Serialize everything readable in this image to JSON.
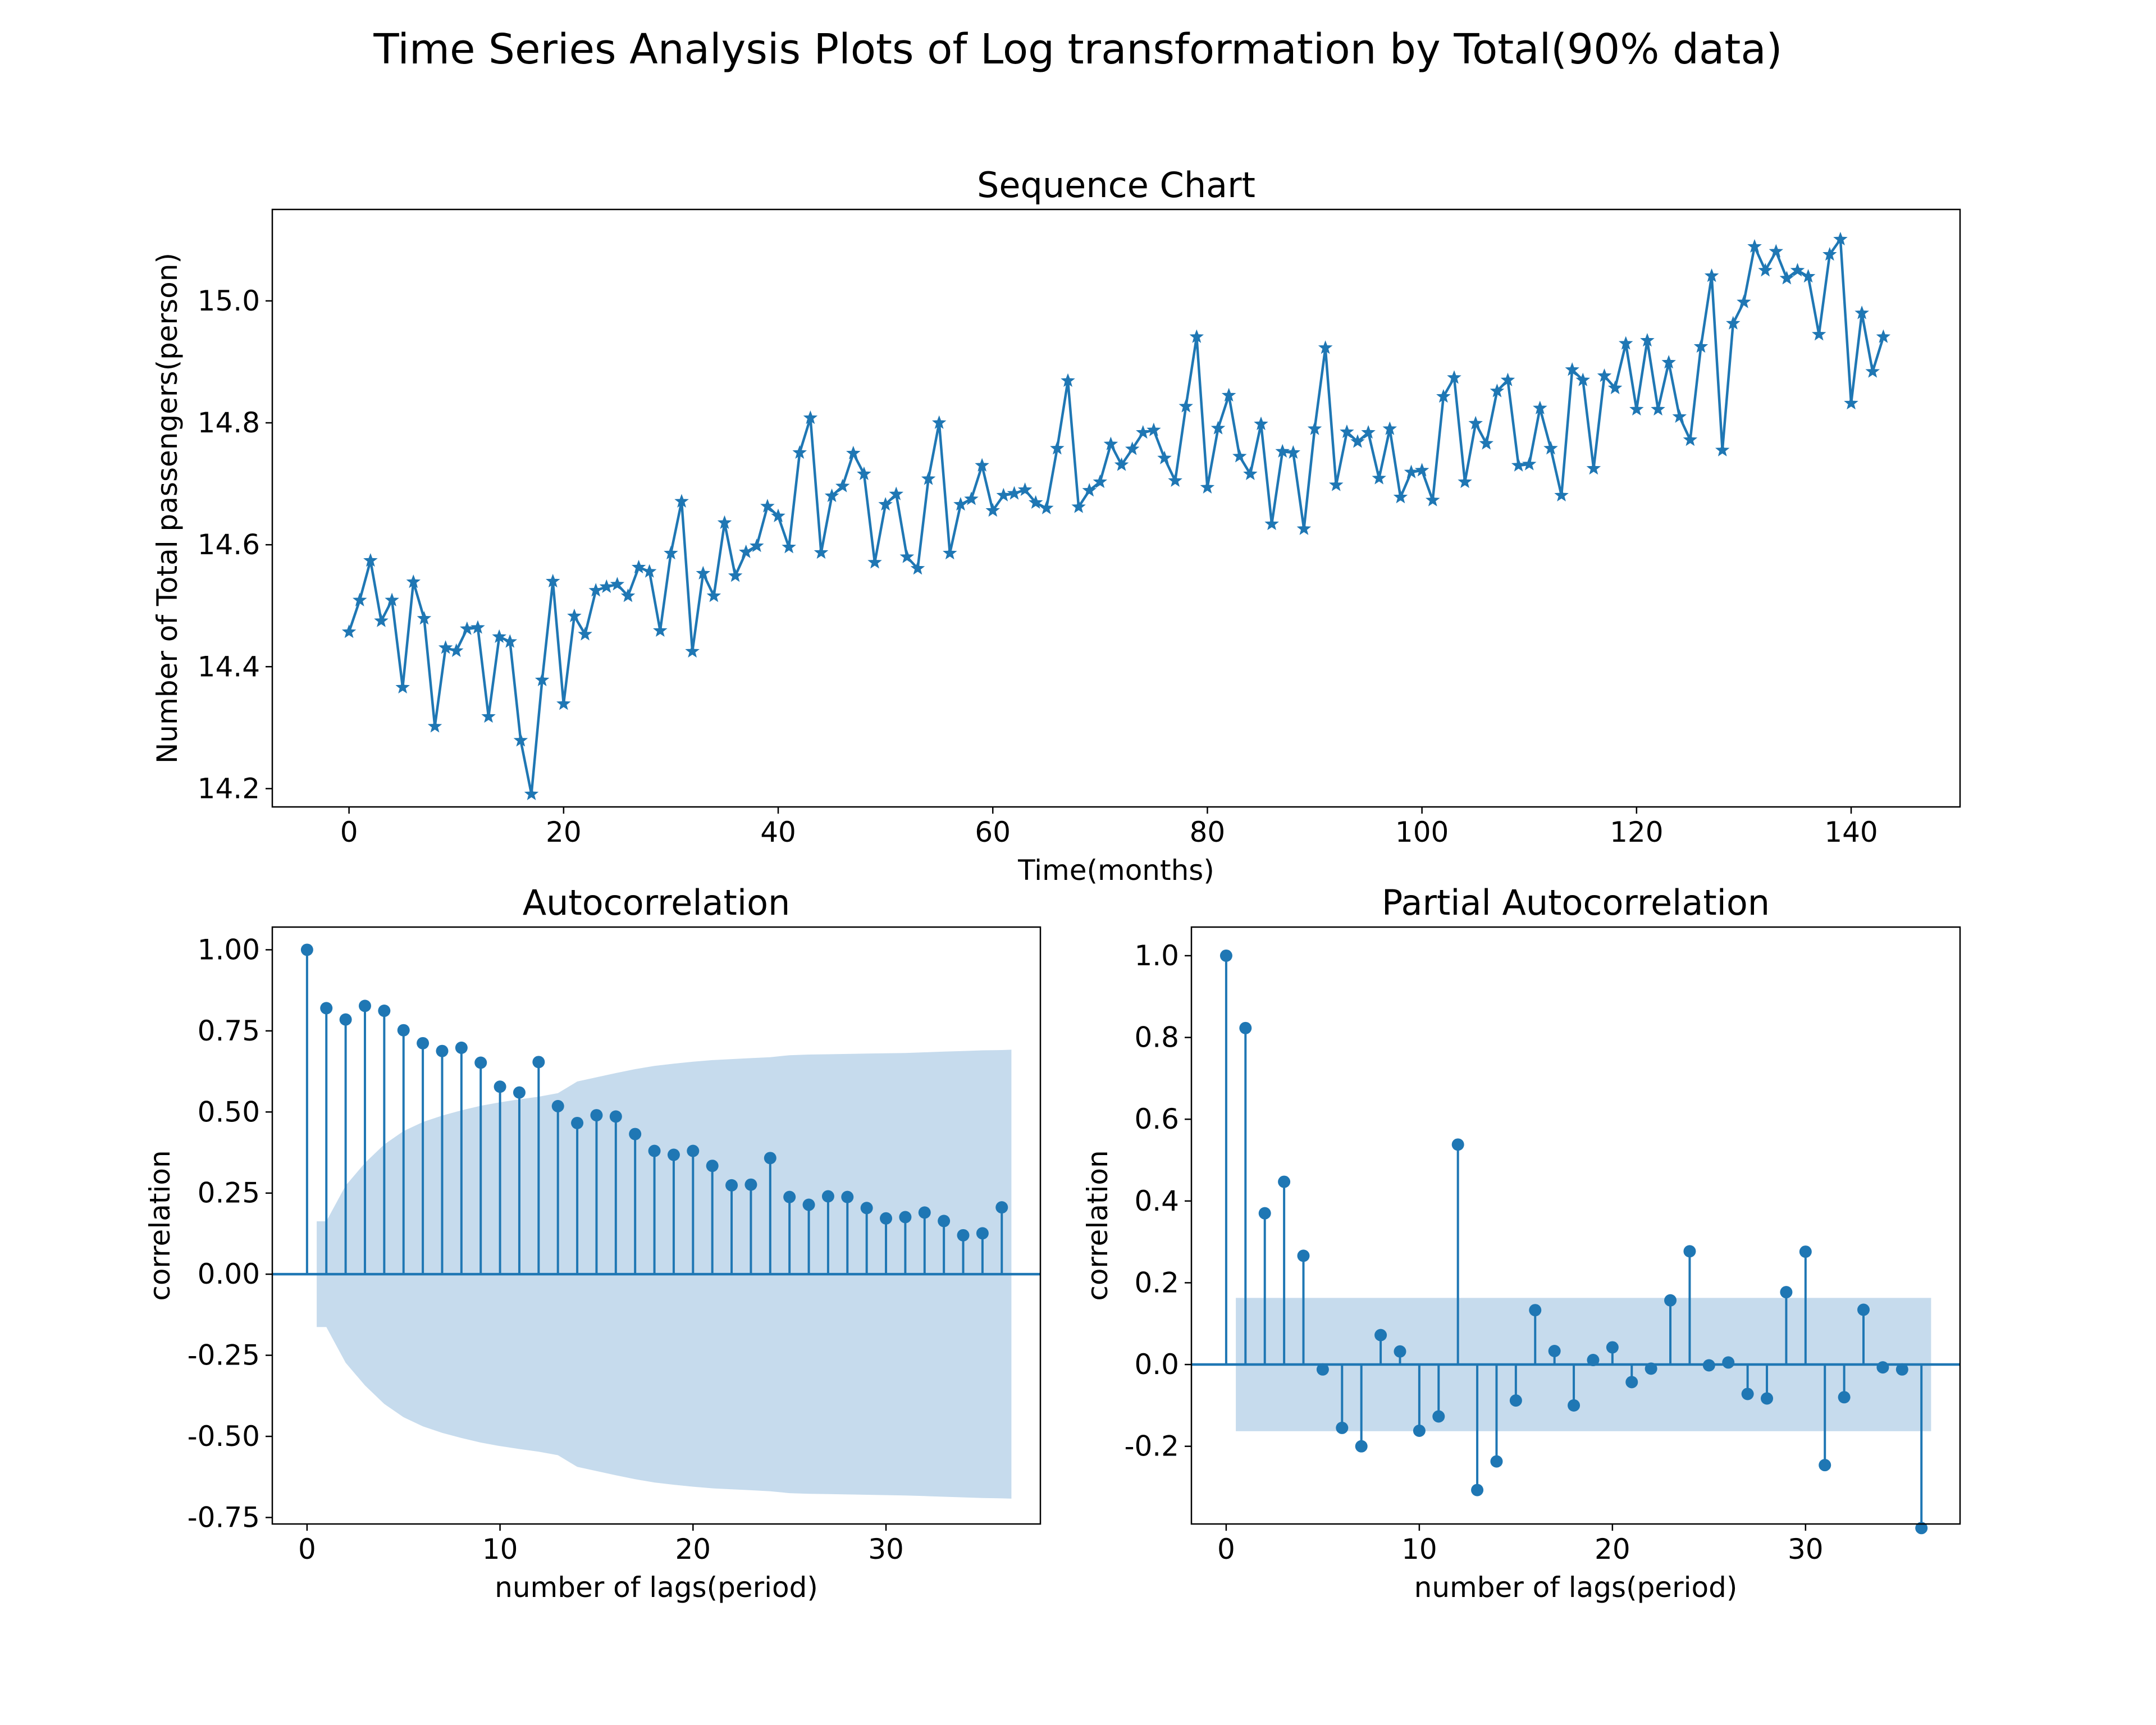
{
  "figure": {
    "title": "Time Series Analysis Plots of Log transformation by Total(90% data)",
    "line_color": "#1f77b4",
    "band_color": "#c6dbed"
  },
  "chart_data": [
    {
      "type": "line",
      "title": "Sequence Chart",
      "xlabel": "Time(months)",
      "ylabel": "Number of Total passengers(person)",
      "xlim": [
        -7.15,
        150.15
      ],
      "ylim": [
        14.17,
        15.15
      ],
      "xticks": [
        0,
        20,
        40,
        60,
        80,
        100,
        120,
        140
      ],
      "xtick_labels": [
        "0",
        "20",
        "40",
        "60",
        "80",
        "100",
        "120",
        "140"
      ],
      "yticks": [
        14.2,
        14.4,
        14.6,
        14.8,
        15.0
      ],
      "ytick_labels": [
        "14.2",
        "14.4",
        "14.6",
        "14.8",
        "15.0"
      ],
      "marker": "star",
      "grid": false,
      "x": [
        0,
        1,
        2,
        3,
        4,
        5,
        6,
        7,
        8,
        9,
        10,
        11,
        12,
        13,
        14,
        15,
        16,
        17,
        18,
        19,
        20,
        21,
        22,
        23,
        24,
        25,
        26,
        27,
        28,
        29,
        30,
        31,
        32,
        33,
        34,
        35,
        36,
        37,
        38,
        39,
        40,
        41,
        42,
        43,
        44,
        45,
        46,
        47,
        48,
        49,
        50,
        51,
        52,
        53,
        54,
        55,
        56,
        57,
        58,
        59,
        60,
        61,
        62,
        63,
        64,
        65,
        66,
        67,
        68,
        69,
        70,
        71,
        72,
        73,
        74,
        75,
        76,
        77,
        78,
        79,
        80,
        81,
        82,
        83,
        84,
        85,
        86,
        87,
        88,
        89,
        90,
        91,
        92,
        93,
        94,
        95,
        96,
        97,
        98,
        99,
        100,
        101,
        102,
        103,
        104,
        105,
        106,
        107,
        108,
        109,
        110,
        111,
        112,
        113,
        114,
        115,
        116,
        117,
        118,
        119,
        120,
        121,
        122,
        123,
        124,
        125,
        126,
        127,
        128,
        129,
        130,
        131,
        132,
        133,
        134,
        135,
        136,
        137,
        138,
        139,
        140,
        141,
        142,
        143
      ],
      "series": [
        {
          "values": [
            14.457,
            14.509,
            14.574,
            14.475,
            14.509,
            14.366,
            14.539,
            14.479,
            14.302,
            14.431,
            14.426,
            14.462,
            14.464,
            14.318,
            14.449,
            14.441,
            14.279,
            14.191,
            14.378,
            14.54,
            14.339,
            14.483,
            14.453,
            14.525,
            14.531,
            14.535,
            14.516,
            14.563,
            14.556,
            14.459,
            14.586,
            14.671,
            14.425,
            14.553,
            14.516,
            14.636,
            14.549,
            14.588,
            14.598,
            14.663,
            14.647,
            14.596,
            14.751,
            14.808,
            14.587,
            14.68,
            14.696,
            14.75,
            14.716,
            14.571,
            14.666,
            14.683,
            14.58,
            14.561,
            14.708,
            14.8,
            14.586,
            14.666,
            14.675,
            14.73,
            14.656,
            14.681,
            14.684,
            14.69,
            14.669,
            14.66,
            14.758,
            14.869,
            14.662,
            14.689,
            14.703,
            14.765,
            14.731,
            14.757,
            14.784,
            14.788,
            14.742,
            14.705,
            14.827,
            14.941,
            14.694,
            14.791,
            14.845,
            14.745,
            14.716,
            14.798,
            14.634,
            14.753,
            14.751,
            14.626,
            14.79,
            14.923,
            14.698,
            14.785,
            14.769,
            14.784,
            14.709,
            14.79,
            14.678,
            14.719,
            14.722,
            14.673,
            14.843,
            14.874,
            14.703,
            14.799,
            14.766,
            14.852,
            14.87,
            14.73,
            14.732,
            14.824,
            14.758,
            14.681,
            14.887,
            14.87,
            14.725,
            14.877,
            14.857,
            14.93,
            14.822,
            14.935,
            14.822,
            14.899,
            14.81,
            14.772,
            14.925,
            15.041,
            14.755,
            14.963,
            14.998,
            15.089,
            15.05,
            15.081,
            15.037,
            15.05,
            15.04,
            14.945,
            15.076,
            15.101,
            14.832,
            14.98,
            14.884,
            14.941
          ]
        }
      ]
    },
    {
      "type": "stem",
      "title": "Autocorrelation",
      "xlabel": "number of lags(period)",
      "ylabel": "correlation",
      "xlim": [
        -1.8,
        38.0
      ],
      "ylim": [
        -0.77,
        1.07
      ],
      "xticks": [
        0,
        10,
        20,
        30
      ],
      "xtick_labels": [
        "0",
        "10",
        "20",
        "30"
      ],
      "yticks": [
        -0.75,
        -0.5,
        -0.25,
        0.0,
        0.25,
        0.5,
        0.75,
        1.0
      ],
      "ytick_labels": [
        "-0.75",
        "-0.50",
        "-0.25",
        "0.00",
        "0.25",
        "0.50",
        "0.75",
        "1.00"
      ],
      "lags": [
        0,
        1,
        2,
        3,
        4,
        5,
        6,
        7,
        8,
        9,
        10,
        11,
        12,
        13,
        14,
        15,
        16,
        17,
        18,
        19,
        20,
        21,
        22,
        23,
        24,
        25,
        26,
        27,
        28,
        29,
        30,
        31,
        32,
        33,
        34,
        35,
        36
      ],
      "values": [
        1.0,
        0.82,
        0.785,
        0.827,
        0.812,
        0.752,
        0.712,
        0.688,
        0.698,
        0.652,
        0.578,
        0.56,
        0.654,
        0.518,
        0.466,
        0.49,
        0.486,
        0.432,
        0.38,
        0.368,
        0.38,
        0.334,
        0.274,
        0.276,
        0.358,
        0.238,
        0.214,
        0.24,
        0.238,
        0.204,
        0.172,
        0.176,
        0.19,
        0.164,
        0.12,
        0.126,
        0.206
      ],
      "confidence_band": {
        "lags": [
          0.5,
          1,
          2,
          3,
          4,
          5,
          6,
          7,
          8,
          9,
          10,
          11,
          12,
          13,
          14,
          15,
          16,
          17,
          18,
          19,
          20,
          21,
          22,
          23,
          24,
          25,
          26,
          27,
          28,
          29,
          30,
          31,
          32,
          33,
          34,
          35,
          36,
          36.5
        ],
        "upper": [
          0.163,
          0.163,
          0.273,
          0.343,
          0.4,
          0.441,
          0.469,
          0.489,
          0.505,
          0.519,
          0.53,
          0.539,
          0.547,
          0.558,
          0.594,
          0.607,
          0.62,
          0.632,
          0.642,
          0.649,
          0.655,
          0.66,
          0.663,
          0.666,
          0.669,
          0.675,
          0.677,
          0.678,
          0.679,
          0.68,
          0.681,
          0.682,
          0.684,
          0.686,
          0.688,
          0.69,
          0.691,
          0.692
        ]
      }
    },
    {
      "type": "stem",
      "title": "Partial Autocorrelation",
      "xlabel": "number of lags(period)",
      "ylabel": "correlation",
      "xlim": [
        -1.8,
        38.0
      ],
      "ylim": [
        -0.39,
        1.07
      ],
      "xticks": [
        0,
        10,
        20,
        30
      ],
      "xtick_labels": [
        "0",
        "10",
        "20",
        "30"
      ],
      "yticks": [
        -0.2,
        0.0,
        0.2,
        0.4,
        0.6,
        0.8,
        1.0
      ],
      "ytick_labels": [
        "-0.2",
        "0.0",
        "0.2",
        "0.4",
        "0.6",
        "0.8",
        "1.0"
      ],
      "lags": [
        0,
        1,
        2,
        3,
        4,
        5,
        6,
        7,
        8,
        9,
        10,
        11,
        12,
        13,
        14,
        15,
        16,
        17,
        18,
        19,
        20,
        21,
        22,
        23,
        24,
        25,
        26,
        27,
        28,
        29,
        30,
        31,
        32,
        33,
        34,
        35,
        36
      ],
      "values": [
        1.0,
        0.823,
        0.37,
        0.447,
        0.266,
        -0.012,
        -0.155,
        -0.2,
        0.072,
        0.032,
        -0.162,
        -0.127,
        0.538,
        -0.307,
        -0.237,
        -0.088,
        0.133,
        0.033,
        -0.1,
        0.011,
        0.042,
        -0.043,
        -0.01,
        0.157,
        0.277,
        -0.002,
        0.005,
        -0.072,
        -0.083,
        0.177,
        0.276,
        -0.246,
        -0.08,
        0.134,
        -0.007,
        -0.012,
        -0.4
      ],
      "confidence_band": {
        "lag_range": [
          0.5,
          36.5
        ],
        "upper": 0.163,
        "lower": -0.163
      }
    }
  ]
}
